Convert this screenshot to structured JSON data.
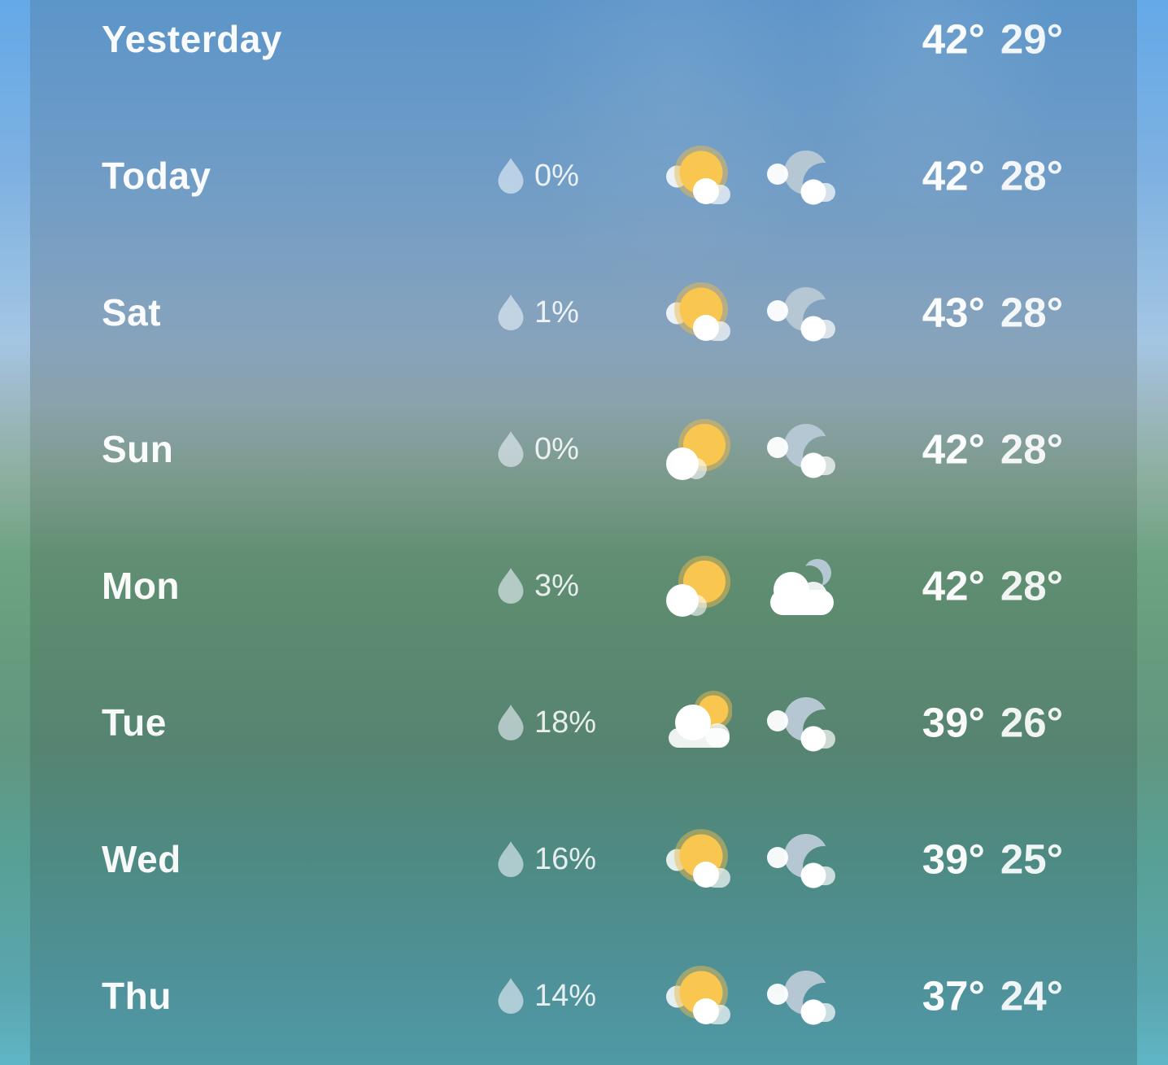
{
  "colors": {
    "sun": "#F9C750",
    "sun_halo": "#ECBA4E",
    "moon": "#B6C7D4",
    "cloud": "#FFFFFF",
    "raindrop": "#E8F1F8",
    "sky_top": "#5C95C9",
    "sky_haze": "#8AA2AB",
    "sky_green": "#5C8B70",
    "sky_bottom": "#4F9AA5",
    "edge_strip_top": "#64A9E8",
    "edge_strip_bottom": "#60B5C5"
  },
  "forecast": {
    "rows": [
      {
        "day": "Yesterday",
        "precip_chance": "",
        "day_icon": "",
        "night_icon": "",
        "high": "42°",
        "low": "29°"
      },
      {
        "day": "Today",
        "precip_chance": "0%",
        "day_icon": "sun-behind-small-cloud",
        "night_icon": "moon-with-cloud",
        "high": "42°",
        "low": "28°"
      },
      {
        "day": "Sat",
        "precip_chance": "1%",
        "day_icon": "sun-behind-small-cloud",
        "night_icon": "moon-with-cloud",
        "high": "43°",
        "low": "28°"
      },
      {
        "day": "Sun",
        "precip_chance": "0%",
        "day_icon": "sun-with-cloud-left",
        "night_icon": "moon-with-cloud",
        "high": "42°",
        "low": "28°"
      },
      {
        "day": "Mon",
        "precip_chance": "3%",
        "day_icon": "sun-with-cloud-left",
        "night_icon": "cloud-with-moon",
        "high": "42°",
        "low": "28°"
      },
      {
        "day": "Tue",
        "precip_chance": "18%",
        "day_icon": "cloud-with-sun",
        "night_icon": "moon-with-cloud",
        "high": "39°",
        "low": "26°"
      },
      {
        "day": "Wed",
        "precip_chance": "16%",
        "day_icon": "sun-behind-small-cloud",
        "night_icon": "moon-with-cloud",
        "high": "39°",
        "low": "25°"
      },
      {
        "day": "Thu",
        "precip_chance": "14%",
        "day_icon": "sun-behind-small-cloud",
        "night_icon": "moon-with-cloud",
        "high": "37°",
        "low": "24°"
      }
    ]
  }
}
